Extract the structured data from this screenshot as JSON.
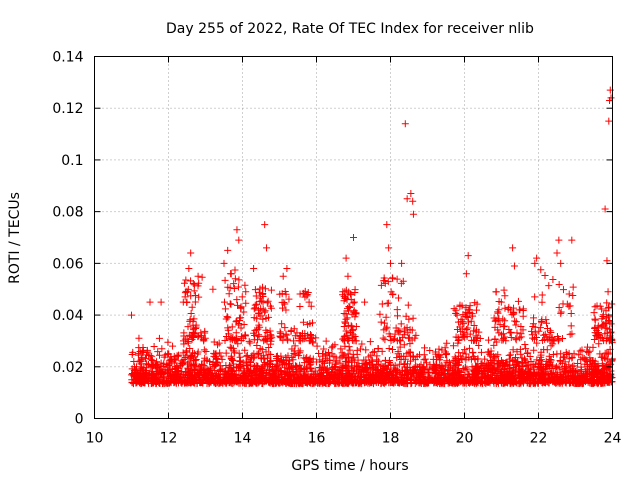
{
  "chart_data": {
    "type": "scatter",
    "title": "Day 255 of 2022, Rate Of TEC Index for receiver nlib",
    "xlabel": "GPS time / hours",
    "ylabel": "ROTI / TECUs",
    "xlim": [
      10,
      24
    ],
    "ylim": [
      0,
      0.14
    ],
    "xticks": [
      10,
      12,
      14,
      16,
      18,
      20,
      22,
      24
    ],
    "yticks": [
      0,
      0.02,
      0.04,
      0.06,
      0.08,
      0.1,
      0.12,
      0.14
    ],
    "xtick_labels": [
      "10",
      "12",
      "14",
      "16",
      "18",
      "20",
      "22",
      "24"
    ],
    "ytick_labels": [
      "0",
      "0.02",
      "0.04",
      "0.06",
      "0.08",
      "0.1",
      "0.12",
      "0.14"
    ],
    "grid": true,
    "marker": "+",
    "color": "#ff0000",
    "series": [
      {
        "name": "ROTI",
        "x_range": [
          11.0,
          24.0
        ],
        "baseline_points": 3000,
        "baseline_band": [
          0.008,
          0.03
        ],
        "outliers": [
          {
            "x": 11.0,
            "y": 0.04
          },
          {
            "x": 11.5,
            "y": 0.045
          },
          {
            "x": 11.8,
            "y": 0.045
          },
          {
            "x": 12.4,
            "y": 0.045
          },
          {
            "x": 12.55,
            "y": 0.058
          },
          {
            "x": 12.6,
            "y": 0.064
          },
          {
            "x": 12.8,
            "y": 0.055
          },
          {
            "x": 13.2,
            "y": 0.05
          },
          {
            "x": 13.5,
            "y": 0.06
          },
          {
            "x": 13.6,
            "y": 0.065
          },
          {
            "x": 13.85,
            "y": 0.073
          },
          {
            "x": 13.9,
            "y": 0.069
          },
          {
            "x": 14.3,
            "y": 0.058
          },
          {
            "x": 14.6,
            "y": 0.075
          },
          {
            "x": 14.65,
            "y": 0.066
          },
          {
            "x": 15.1,
            "y": 0.055
          },
          {
            "x": 15.2,
            "y": 0.058
          },
          {
            "x": 15.8,
            "y": 0.045
          },
          {
            "x": 16.8,
            "y": 0.062
          },
          {
            "x": 16.85,
            "y": 0.055
          },
          {
            "x": 17.0,
            "y": 0.07
          },
          {
            "x": 17.3,
            "y": 0.045
          },
          {
            "x": 17.9,
            "y": 0.075
          },
          {
            "x": 17.95,
            "y": 0.066
          },
          {
            "x": 18.0,
            "y": 0.06
          },
          {
            "x": 18.3,
            "y": 0.06
          },
          {
            "x": 18.4,
            "y": 0.114
          },
          {
            "x": 18.45,
            "y": 0.085
          },
          {
            "x": 18.55,
            "y": 0.087
          },
          {
            "x": 18.6,
            "y": 0.084
          },
          {
            "x": 18.62,
            "y": 0.079
          },
          {
            "x": 19.8,
            "y": 0.04
          },
          {
            "x": 20.1,
            "y": 0.063
          },
          {
            "x": 20.05,
            "y": 0.056
          },
          {
            "x": 20.85,
            "y": 0.049
          },
          {
            "x": 21.3,
            "y": 0.066
          },
          {
            "x": 21.35,
            "y": 0.059
          },
          {
            "x": 21.9,
            "y": 0.06
          },
          {
            "x": 21.95,
            "y": 0.062
          },
          {
            "x": 22.5,
            "y": 0.064
          },
          {
            "x": 22.55,
            "y": 0.069
          },
          {
            "x": 22.6,
            "y": 0.06
          },
          {
            "x": 22.9,
            "y": 0.069
          },
          {
            "x": 23.8,
            "y": 0.081
          },
          {
            "x": 23.85,
            "y": 0.061
          },
          {
            "x": 23.9,
            "y": 0.115
          },
          {
            "x": 23.92,
            "y": 0.123
          },
          {
            "x": 23.94,
            "y": 0.127
          },
          {
            "x": 23.96,
            "y": 0.124
          },
          {
            "x": 23.88,
            "y": 0.049
          }
        ],
        "peak_regions": [
          {
            "x": [
              12.4,
              13.0
            ],
            "y": [
              0.03,
              0.055
            ]
          },
          {
            "x": [
              13.5,
              14.1
            ],
            "y": [
              0.03,
              0.06
            ]
          },
          {
            "x": [
              14.3,
              14.8
            ],
            "y": [
              0.03,
              0.052
            ]
          },
          {
            "x": [
              15.0,
              15.9
            ],
            "y": [
              0.03,
              0.05
            ]
          },
          {
            "x": [
              16.7,
              17.1
            ],
            "y": [
              0.03,
              0.05
            ]
          },
          {
            "x": [
              17.7,
              18.7
            ],
            "y": [
              0.03,
              0.055
            ]
          },
          {
            "x": [
              19.7,
              20.4
            ],
            "y": [
              0.03,
              0.045
            ]
          },
          {
            "x": [
              20.8,
              21.6
            ],
            "y": [
              0.03,
              0.05
            ]
          },
          {
            "x": [
              21.8,
              23.0
            ],
            "y": [
              0.03,
              0.058
            ]
          },
          {
            "x": [
              23.5,
              24.0
            ],
            "y": [
              0.03,
              0.045
            ]
          }
        ]
      }
    ]
  }
}
